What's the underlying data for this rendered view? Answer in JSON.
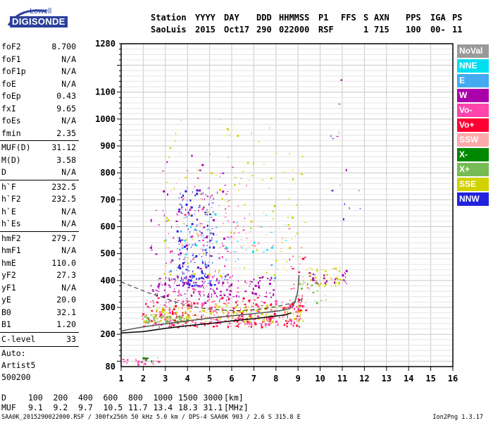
{
  "logo": {
    "top": "Lowell",
    "main": "DIGISONDE"
  },
  "header": {
    "columns": [
      "Station",
      "YYYY",
      "DAY",
      "DDD",
      "HHMMSS",
      "P1",
      "FFS",
      "S",
      "AXN",
      "PPS",
      "IGA",
      "PS"
    ],
    "values": [
      "SaoLuis",
      "2015",
      "Oct17",
      "290",
      "022000",
      "RSF",
      "",
      "1",
      "715",
      "100",
      "00-",
      "11"
    ]
  },
  "params_a": [
    {
      "label": "foF2",
      "value": "8.700"
    },
    {
      "label": "foF1",
      "value": "N/A"
    },
    {
      "label": "foF1p",
      "value": "N/A"
    },
    {
      "label": "foE",
      "value": "N/A"
    },
    {
      "label": "foEp",
      "value": "0.43"
    },
    {
      "label": "fxI",
      "value": "9.65"
    },
    {
      "label": "foEs",
      "value": "N/A"
    },
    {
      "label": "fmin",
      "value": "2.35"
    }
  ],
  "params_b": [
    {
      "label": "MUF(D)",
      "value": "31.12"
    },
    {
      "label": "M(D)",
      "value": "3.58"
    },
    {
      "label": "D",
      "value": "N/A"
    }
  ],
  "params_c": [
    {
      "label": "h`F",
      "value": "232.5"
    },
    {
      "label": "h`F2",
      "value": "232.5"
    },
    {
      "label": "h`E",
      "value": "N/A"
    },
    {
      "label": "h`Es",
      "value": "N/A"
    }
  ],
  "params_d": [
    {
      "label": "hmF2",
      "value": "279.7"
    },
    {
      "label": "hmF1",
      "value": "N/A"
    },
    {
      "label": "hmE",
      "value": "110.0"
    },
    {
      "label": "yF2",
      "value": "27.3"
    },
    {
      "label": "yF1",
      "value": "N/A"
    },
    {
      "label": "yE",
      "value": "20.0"
    },
    {
      "label": "B0",
      "value": "32.1"
    },
    {
      "label": "B1",
      "value": "1.20"
    }
  ],
  "c_level": {
    "label": "C-level",
    "value": "33"
  },
  "scaler": {
    "l1": "Auto:",
    "l2": "Artist5",
    "l3": "500200"
  },
  "legend": [
    {
      "label": "NoVal",
      "color": "#999999"
    },
    {
      "label": "NNE",
      "color": "#00dff2"
    },
    {
      "label": "E",
      "color": "#44aaf2"
    },
    {
      "label": "W",
      "color": "#aa00aa"
    },
    {
      "label": "Vo-",
      "color": "#ff44aa"
    },
    {
      "label": "Vo+",
      "color": "#ff0033"
    },
    {
      "label": "SSW",
      "color": "#ffaaaa"
    },
    {
      "label": "X-",
      "color": "#008800"
    },
    {
      "label": "X+",
      "color": "#77bb55"
    },
    {
      "label": "SSE",
      "color": "#d2d200"
    },
    {
      "label": "NNW",
      "color": "#2222dd"
    }
  ],
  "muf_table": {
    "d_label": "D",
    "d_values": [
      "100",
      "200",
      "400",
      "600",
      "800",
      "1000",
      "1500",
      "3000"
    ],
    "d_unit": "[km]",
    "muf_label": "MUF",
    "muf_values": [
      "9.1",
      "9.2",
      "9.7",
      "10.5",
      "11.7",
      "13.4",
      "18.3",
      "31.1"
    ],
    "muf_unit": "[MHz]"
  },
  "footer": {
    "left": "SAA0K_2015290022000.RSF / 300fx256h 50 kHz 5.0 km / DPS-4 SAA0K 903 / 2.6 S 315.8 E",
    "right": "Ion2Png 1.3.17"
  },
  "chart_data": {
    "type": "scatter",
    "x_ticks": [
      1,
      2,
      3,
      4,
      5,
      6,
      7,
      8,
      9,
      10,
      11,
      12,
      13,
      14,
      15,
      16
    ],
    "y_tick_labels": [
      80,
      200,
      300,
      400,
      500,
      600,
      700,
      800,
      900,
      1000,
      1100,
      1280
    ],
    "xlim": [
      1,
      16
    ],
    "ylim": [
      80,
      1280
    ],
    "grid": true,
    "x_unit": "MHz",
    "y_unit": "km",
    "trace_color": "#555555",
    "profile_color": "#000000",
    "ordinary_trace": [
      [
        1.0,
        212
      ],
      [
        1.6,
        222
      ],
      [
        2.2,
        230
      ],
      [
        2.8,
        237
      ],
      [
        3.4,
        243
      ],
      [
        4.0,
        250
      ],
      [
        4.6,
        256
      ],
      [
        5.2,
        262
      ],
      [
        5.8,
        267
      ],
      [
        6.4,
        272
      ],
      [
        7.0,
        277
      ],
      [
        7.6,
        282
      ],
      [
        8.2,
        288
      ],
      [
        8.6,
        295
      ],
      [
        8.75,
        303
      ],
      [
        8.85,
        320
      ],
      [
        8.95,
        345
      ],
      [
        9.0,
        370
      ],
      [
        9.05,
        420
      ]
    ],
    "profile": [
      [
        1.0,
        205
      ],
      [
        2.0,
        210
      ],
      [
        3.0,
        222
      ],
      [
        4.0,
        232
      ],
      [
        5.0,
        240
      ],
      [
        6.0,
        250
      ],
      [
        7.0,
        258
      ],
      [
        7.8,
        266
      ],
      [
        8.4,
        272
      ],
      [
        8.7,
        279.7
      ]
    ],
    "model_dashed": [
      [
        1.0,
        395
      ],
      [
        1.6,
        375
      ],
      [
        2.2,
        355
      ],
      [
        2.8,
        340
      ],
      [
        3.4,
        322
      ],
      [
        4.0,
        307
      ],
      [
        4.6,
        298
      ],
      [
        5.2,
        292
      ],
      [
        5.8,
        289
      ],
      [
        6.4,
        288
      ],
      [
        7.0,
        291
      ],
      [
        7.6,
        297
      ],
      [
        8.2,
        306
      ],
      [
        8.7,
        316
      ],
      [
        9.0,
        324
      ],
      [
        9.2,
        330
      ]
    ],
    "echo_regions": [
      {
        "color": "#ff0033",
        "count": 260,
        "x": [
          1.9,
          9.2
        ],
        "y": [
          230,
          340
        ]
      },
      {
        "color": "#ff44aa",
        "count": 160,
        "x": [
          1.9,
          9.2
        ],
        "y": [
          240,
          330
        ]
      },
      {
        "color": "#d2d200",
        "count": 160,
        "x": [
          2.0,
          9.3
        ],
        "y": [
          250,
          310
        ]
      },
      {
        "color": "#77bb55",
        "count": 60,
        "x": [
          2.0,
          4.0
        ],
        "y": [
          245,
          275
        ]
      },
      {
        "color": "#aa00aa",
        "count": 140,
        "x": [
          2.5,
          8.0
        ],
        "y": [
          340,
          420
        ]
      },
      {
        "color": "#2222dd",
        "count": 180,
        "x": [
          3.5,
          5.2
        ],
        "y": [
          380,
          740
        ]
      },
      {
        "color": "#aa00aa",
        "count": 120,
        "x": [
          2.3,
          6.0
        ],
        "y": [
          320,
          870
        ]
      },
      {
        "color": "#ff44aa",
        "count": 90,
        "x": [
          3.0,
          6.8
        ],
        "y": [
          350,
          820
        ]
      },
      {
        "color": "#d2d200",
        "count": 120,
        "x": [
          2.8,
          9.4
        ],
        "y": [
          420,
          1000
        ]
      },
      {
        "color": "#ffaaaa",
        "count": 40,
        "x": [
          3.5,
          9.2
        ],
        "y": [
          520,
          620
        ]
      },
      {
        "color": "#00dff2",
        "count": 35,
        "x": [
          3.5,
          8.5
        ],
        "y": [
          500,
          650
        ]
      },
      {
        "color": "#44aaf2",
        "count": 30,
        "x": [
          3.0,
          8.0
        ],
        "y": [
          400,
          600
        ]
      },
      {
        "color": "#d2d200",
        "count": 50,
        "x": [
          9.2,
          11.0
        ],
        "y": [
          380,
          450
        ]
      },
      {
        "color": "#aa00aa",
        "count": 30,
        "x": [
          9.2,
          11.2
        ],
        "y": [
          390,
          440
        ]
      },
      {
        "color": "#77bb55",
        "count": 20,
        "x": [
          9.0,
          10.3
        ],
        "y": [
          320,
          400
        ]
      },
      {
        "color": "#ff0033",
        "count": 30,
        "x": [
          8.6,
          9.4
        ],
        "y": [
          290,
          500
        ]
      },
      {
        "color": "#008800",
        "count": 12,
        "x": [
          1.8,
          2.8
        ],
        "y": [
          100,
          115
        ]
      },
      {
        "color": "#ff44aa",
        "count": 20,
        "x": [
          1.0,
          2.8
        ],
        "y": [
          90,
          110
        ]
      },
      {
        "color": "#2222dd",
        "count": 8,
        "x": [
          10.3,
          11.8
        ],
        "y": [
          630,
          960
        ]
      },
      {
        "color": "#aa00aa",
        "count": 6,
        "x": [
          10.5,
          11.8
        ],
        "y": [
          700,
          1270
        ]
      }
    ]
  }
}
